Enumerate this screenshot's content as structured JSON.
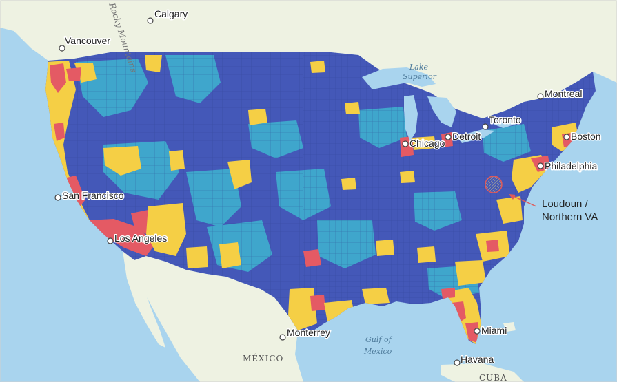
{
  "map": {
    "colors": {
      "dark_blue": "#4458b8",
      "light_blue": "#3fa6cc",
      "yellow": "#f5cf45",
      "red": "#e45a64",
      "ocean": "#a9d4ee",
      "land": "#eef2e2",
      "highlight": "#c9c9c9"
    },
    "cities": [
      {
        "name": "Calgary"
      },
      {
        "name": "Vancouver"
      },
      {
        "name": "Montreal"
      },
      {
        "name": "Toronto"
      },
      {
        "name": "Detroit"
      },
      {
        "name": "Boston"
      },
      {
        "name": "Chicago"
      },
      {
        "name": "Philadelphia"
      },
      {
        "name": "San Francisco"
      },
      {
        "name": "Los Angeles"
      },
      {
        "name": "Monterrey"
      },
      {
        "name": "Miami"
      },
      {
        "name": "Havana"
      }
    ],
    "water_labels": {
      "lake_superior_1": "Lake",
      "lake_superior_2": "Superior",
      "gulf_1": "Gulf of",
      "gulf_2": "Mexico"
    },
    "country_labels": {
      "mexico": "MÉXICO",
      "cuba": "CUBA"
    },
    "mountain_label": "Rocky Mountains",
    "annotation": {
      "line1": "Loudoun /",
      "line2": "Northern VA"
    }
  }
}
